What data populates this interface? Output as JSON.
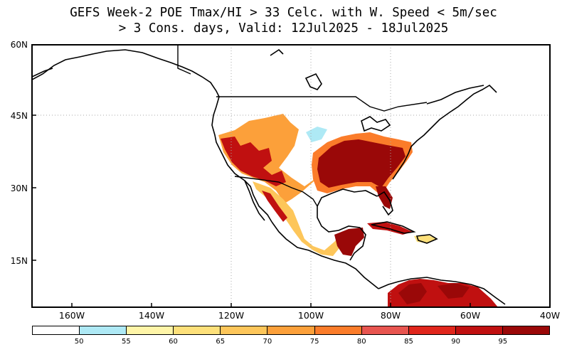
{
  "title": {
    "line1": "GEFS Week-2 POE Tmax/HI > 33 Celc. with W. Speed < 5m/sec",
    "line2": "> 3 Cons. days, Valid: 12Jul2025 - 18Jul2025"
  },
  "axes": {
    "y_ticks": [
      "60N",
      "45N",
      "30N",
      "15N"
    ],
    "x_ticks": [
      "160W",
      "140W",
      "120W",
      "100W",
      "80W",
      "60W",
      "40W"
    ]
  },
  "colorbar": {
    "colors": [
      "#ffffff",
      "#aee9f5",
      "#fff5a8",
      "#fde07a",
      "#fdc65a",
      "#fca03a",
      "#fb7c2a",
      "#e85550",
      "#e0261c",
      "#c01010",
      "#9a0808"
    ],
    "labels": [
      "50",
      "55",
      "60",
      "65",
      "70",
      "75",
      "80",
      "85",
      "90",
      "95"
    ]
  },
  "map": {
    "lat_range": [
      5,
      60
    ],
    "lon_range": [
      -170,
      -40
    ],
    "grid_style": "dotted gray lines at 45N and at 120W, 100W, 80W"
  }
}
